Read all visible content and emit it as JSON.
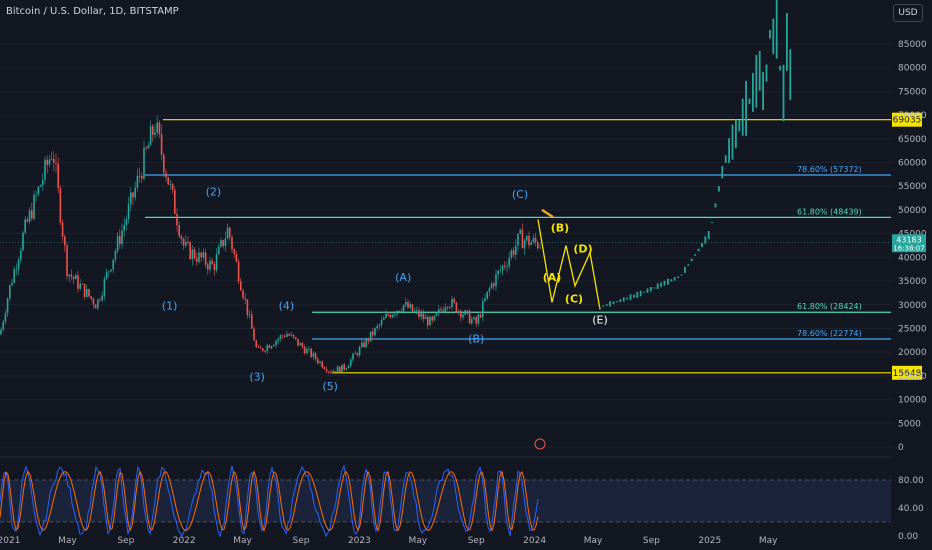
{
  "symbol_title": "Bitcoin / U.S. Dollar, 1D, BITSTAMP",
  "currency_button": "USD",
  "colors": {
    "bg": "#131722",
    "up": "#26a69a",
    "down": "#ef5350",
    "yellow": "#f5e400",
    "blue_fib": "#42a5f5",
    "green_fib": "#4ddbb3",
    "wave_label": "#42a5f5"
  },
  "chart_data": {
    "type": "line",
    "title": "Bitcoin / U.S. Dollar, 1D, BITSTAMP",
    "y_ticks": [
      0,
      5000,
      10000,
      15000,
      20000,
      25000,
      30000,
      35000,
      40000,
      45000,
      50000,
      55000,
      60000,
      65000,
      70000,
      75000,
      80000,
      85000
    ],
    "ylim": [
      0,
      90000
    ],
    "x_ticks": [
      "2021",
      "May",
      "Sep",
      "2022",
      "May",
      "Sep",
      "2023",
      "May",
      "Sep",
      "2024",
      "May",
      "Sep",
      "2025",
      "May"
    ],
    "price_history": {
      "x": [
        "2020-12",
        "2021-01",
        "2021-02",
        "2021-04",
        "2021-05",
        "2021-07",
        "2021-09",
        "2021-11",
        "2022-01",
        "2022-03",
        "2022-04",
        "2022-06",
        "2022-08",
        "2022-11",
        "2022-12",
        "2023-03",
        "2023-04",
        "2023-06",
        "2023-07",
        "2023-09",
        "2023-10",
        "2023-12",
        "2024-01"
      ],
      "y": [
        18000,
        33000,
        45000,
        63000,
        37000,
        30000,
        48000,
        68000,
        42000,
        38000,
        46000,
        20000,
        24000,
        16000,
        16800,
        28000,
        30000,
        26000,
        31000,
        26000,
        34000,
        44000,
        43000
      ]
    },
    "projection": {
      "x": [
        "2024-01",
        "2024-02",
        "2024-03",
        "2024-04",
        "2024-05",
        "2024-08",
        "2024-11",
        "2025-01",
        "2025-02",
        "2025-04",
        "2025-05",
        "2025-06"
      ],
      "y": [
        45000,
        31000,
        42000,
        33000,
        29000,
        32000,
        36000,
        45000,
        60000,
        75000,
        85000,
        80000
      ]
    },
    "horizontal_levels": [
      {
        "price": 69035,
        "label": "69035",
        "style": "yellow"
      },
      {
        "price": 57372,
        "label": "78.60% (57372)",
        "style": "blue"
      },
      {
        "price": 48439,
        "label": "61.80% (48439)",
        "style": "green"
      },
      {
        "price": 28424,
        "label": "61.80% (28424)",
        "style": "green"
      },
      {
        "price": 22774,
        "label": "78.60% (22774)",
        "style": "blue"
      },
      {
        "price": 15648,
        "label": "15648",
        "style": "yellow"
      }
    ],
    "current_price_label": "43183",
    "countdown_label": "16:38:07",
    "wave_labels": [
      {
        "text": "(1)",
        "x": "2021-12",
        "price": 29000,
        "color": "blue"
      },
      {
        "text": "(2)",
        "x": "2022-03",
        "price": 53000,
        "color": "blue"
      },
      {
        "text": "(3)",
        "x": "2022-06",
        "price": 14000,
        "color": "blue"
      },
      {
        "text": "(4)",
        "x": "2022-08",
        "price": 29000,
        "color": "blue"
      },
      {
        "text": "(5)",
        "x": "2022-11",
        "price": 12000,
        "color": "blue"
      },
      {
        "text": "(A)",
        "x": "2023-04",
        "price": 35000,
        "color": "blue"
      },
      {
        "text": "(B)",
        "x": "2023-09",
        "price": 22000,
        "color": "blue"
      },
      {
        "text": "(C)",
        "x": "2023-12",
        "price": 52500,
        "color": "blue"
      },
      {
        "text": "(A)",
        "x": "2024-01",
        "price": 35000,
        "color": "yellow"
      },
      {
        "text": "(B)",
        "x": "2024-02",
        "price": 45500,
        "color": "yellow"
      },
      {
        "text": "(C)",
        "x": "2024-04",
        "price": 30500,
        "color": "yellow"
      },
      {
        "text": "(D)",
        "x": "2024-04",
        "price": 41000,
        "color": "yellow"
      },
      {
        "text": "(E)",
        "x": "2024-05",
        "price": 26000,
        "color": "white"
      }
    ],
    "stoch_rsi": {
      "ticks": [
        "80.00",
        "40.00",
        "0.00"
      ],
      "upper_band": 80,
      "lower_band": 20
    }
  }
}
